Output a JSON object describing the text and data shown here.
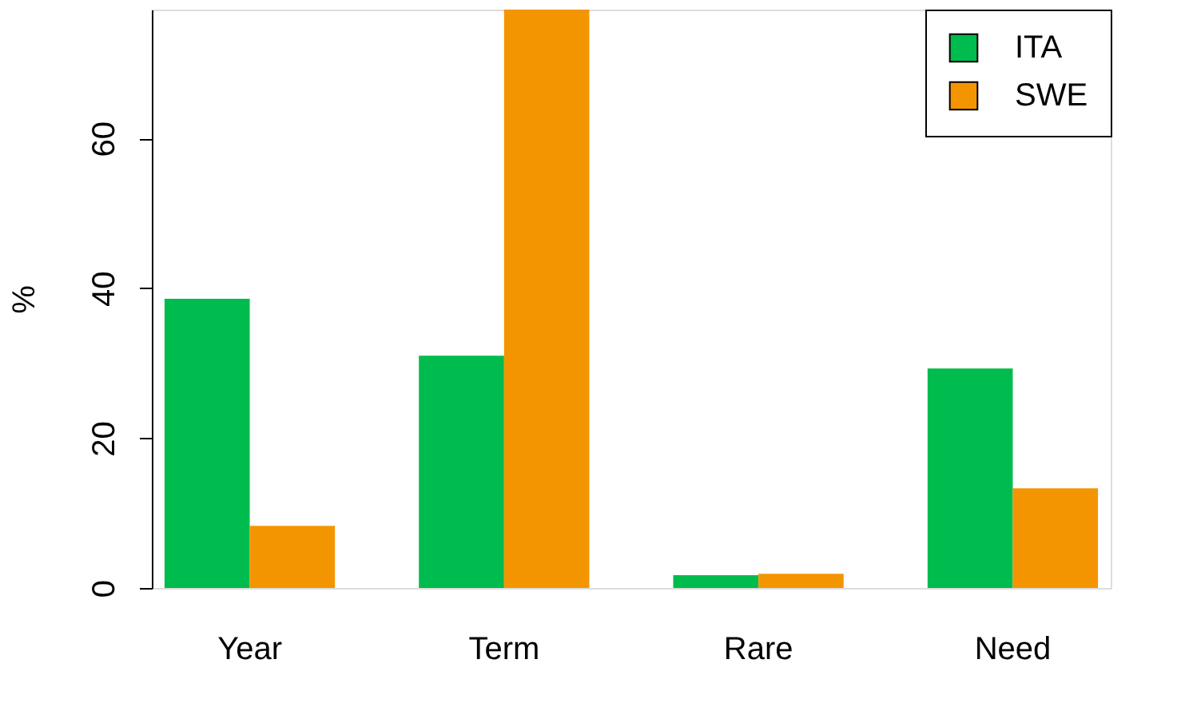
{
  "chart_data": {
    "type": "bar",
    "ylabel": "%",
    "categories": [
      "Year",
      "Term",
      "Rare",
      "Need"
    ],
    "series": [
      {
        "name": "ITA",
        "color": "#00bb4d",
        "values": [
          38.6,
          31.0,
          1.7,
          29.3
        ]
      },
      {
        "name": "SWE",
        "color": "#f39500",
        "values": [
          8.3,
          77.2,
          1.9,
          13.3
        ]
      }
    ],
    "ylim": [
      0,
      77.2
    ],
    "yticks": [
      0,
      20,
      40,
      60
    ],
    "grid": false,
    "legend": "top right"
  }
}
